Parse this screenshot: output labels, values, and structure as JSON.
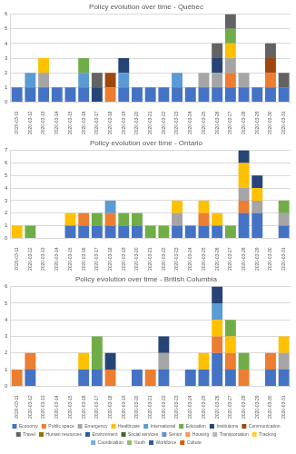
{
  "chart_data": [
    {
      "type": "bar",
      "title": "Policy evolution over time - Québec",
      "stacked": true,
      "grid": true,
      "categories": [
        "2020-03-11",
        "2020-03-12",
        "2020-03-13",
        "2020-03-14",
        "2020-03-15",
        "2020-03-16",
        "2020-03-17",
        "2020-03-18",
        "2020-03-19",
        "2020-03-20",
        "2020-03-21",
        "2020-03-22",
        "2020-03-23",
        "2020-03-24",
        "2020-03-25",
        "2020-03-26",
        "2020-03-27",
        "2020-03-28",
        "2020-03-29",
        "2020-03-30",
        "2020-03-31"
      ],
      "ylim": [
        0,
        6
      ],
      "yticks": [
        0,
        1,
        2,
        3,
        4,
        5,
        6
      ],
      "series": [
        {
          "name": "Economy",
          "color": "#4472C4",
          "values": [
            1,
            1,
            1,
            1,
            1,
            1,
            0,
            0,
            1,
            1,
            1,
            1,
            1,
            1,
            1,
            1,
            1,
            1,
            1,
            1,
            1
          ]
        },
        {
          "name": "Public space",
          "color": "#ED7D31",
          "values": [
            0,
            0,
            0,
            0,
            0,
            0,
            0,
            1,
            0,
            0,
            0,
            0,
            0,
            0,
            0,
            0,
            1,
            0,
            0,
            1,
            0
          ]
        },
        {
          "name": "Emergency",
          "color": "#A5A5A5",
          "values": [
            0,
            0,
            1,
            0,
            0,
            0,
            0,
            0,
            0,
            0,
            0,
            0,
            0,
            0,
            1,
            1,
            1,
            1,
            0,
            0,
            0
          ]
        },
        {
          "name": "Healthcare",
          "color": "#FFC000",
          "values": [
            0,
            0,
            1,
            0,
            0,
            0,
            0,
            0,
            0,
            0,
            0,
            0,
            0,
            0,
            0,
            0,
            1,
            0,
            0,
            0,
            0
          ]
        },
        {
          "name": "International",
          "color": "#5B9BD5",
          "values": [
            0,
            1,
            0,
            0,
            0,
            1,
            0,
            0,
            1,
            0,
            0,
            0,
            1,
            0,
            0,
            0,
            0,
            0,
            0,
            0,
            0
          ]
        },
        {
          "name": "Education",
          "color": "#70AD47",
          "values": [
            0,
            0,
            0,
            0,
            0,
            1,
            0,
            0,
            0,
            0,
            0,
            0,
            0,
            0,
            0,
            0,
            1,
            0,
            0,
            0,
            0
          ]
        },
        {
          "name": "Institutions",
          "color": "#264478",
          "values": [
            0,
            0,
            0,
            0,
            0,
            0,
            1,
            0,
            1,
            0,
            0,
            0,
            0,
            0,
            0,
            1,
            0,
            0,
            0,
            0,
            0
          ]
        },
        {
          "name": "Communication",
          "color": "#9E480E",
          "values": [
            0,
            0,
            0,
            0,
            0,
            0,
            0,
            1,
            0,
            0,
            0,
            0,
            0,
            0,
            0,
            0,
            0,
            0,
            0,
            1,
            0
          ]
        },
        {
          "name": "Travel",
          "color": "#636363",
          "values": [
            0,
            0,
            0,
            0,
            0,
            0,
            1,
            0,
            0,
            0,
            0,
            0,
            0,
            0,
            0,
            1,
            1,
            0,
            0,
            1,
            1
          ]
        }
      ]
    },
    {
      "type": "bar",
      "title": "Policy evolution over time - Ontario",
      "stacked": true,
      "grid": true,
      "categories": [
        "2020-03-11",
        "2020-03-12",
        "2020-03-13",
        "2020-03-14",
        "2020-03-15",
        "2020-03-16",
        "2020-03-17",
        "2020-03-18",
        "2020-03-19",
        "2020-03-20",
        "2020-03-21",
        "2020-03-22",
        "2020-03-23",
        "2020-03-24",
        "2020-03-25",
        "2020-03-26",
        "2020-03-27",
        "2020-03-28",
        "2020-03-29",
        "2020-03-30",
        "2020-03-31"
      ],
      "ylim": [
        0,
        7
      ],
      "yticks": [
        0,
        1,
        2,
        3,
        4,
        5,
        6,
        7
      ],
      "series": [
        {
          "name": "Economy",
          "color": "#4472C4",
          "values": [
            0,
            0,
            0,
            0,
            1,
            1,
            1,
            1,
            1,
            1,
            0,
            0,
            1,
            1,
            1,
            1,
            0,
            2,
            2,
            0,
            1
          ]
        },
        {
          "name": "Public space",
          "color": "#ED7D31",
          "values": [
            0,
            0,
            0,
            0,
            0,
            1,
            0,
            1,
            0,
            0,
            0,
            0,
            0,
            0,
            1,
            0,
            0,
            1,
            0,
            0,
            0
          ]
        },
        {
          "name": "Emergency",
          "color": "#A5A5A5",
          "values": [
            0,
            0,
            0,
            0,
            0,
            0,
            0,
            0,
            0,
            0,
            0,
            0,
            1,
            0,
            0,
            0,
            0,
            1,
            1,
            0,
            1
          ]
        },
        {
          "name": "Healthcare",
          "color": "#FFC000",
          "values": [
            1,
            0,
            0,
            0,
            1,
            0,
            0,
            0,
            0,
            0,
            0,
            0,
            1,
            0,
            1,
            1,
            0,
            2,
            1,
            0,
            0
          ]
        },
        {
          "name": "International",
          "color": "#5B9BD5",
          "values": [
            0,
            0,
            0,
            0,
            0,
            0,
            0,
            1,
            0,
            0,
            0,
            0,
            0,
            0,
            0,
            0,
            0,
            0,
            0,
            0,
            0
          ]
        },
        {
          "name": "Education",
          "color": "#70AD47",
          "values": [
            0,
            1,
            0,
            0,
            0,
            0,
            1,
            0,
            1,
            1,
            1,
            1,
            0,
            0,
            0,
            0,
            1,
            0,
            0,
            0,
            1
          ]
        },
        {
          "name": "Institutions",
          "color": "#264478",
          "values": [
            0,
            0,
            0,
            0,
            0,
            0,
            0,
            0,
            0,
            0,
            0,
            0,
            0,
            0,
            0,
            0,
            0,
            1,
            1,
            0,
            0
          ]
        }
      ]
    },
    {
      "type": "bar",
      "title": "Policy evolution over time - British Columbia",
      "stacked": true,
      "grid": true,
      "legend": "bottom",
      "categories": [
        "2020-03-11",
        "2020-03-12",
        "2020-03-13",
        "2020-03-14",
        "2020-03-15",
        "2020-03-16",
        "2020-03-17",
        "2020-03-18",
        "2020-03-19",
        "2020-03-20",
        "2020-03-21",
        "2020-03-22",
        "2020-03-23",
        "2020-03-24",
        "2020-03-25",
        "2020-03-26",
        "2020-03-27",
        "2020-03-28",
        "2020-03-29",
        "2020-03-30",
        "2020-03-31"
      ],
      "ylim": [
        0,
        6
      ],
      "yticks": [
        0,
        1,
        2,
        3,
        4,
        5,
        6
      ],
      "series": [
        {
          "name": "Economy",
          "color": "#4472C4",
          "values": [
            0,
            1,
            0,
            0,
            0,
            1,
            1,
            0,
            0,
            1,
            0,
            1,
            0,
            1,
            1,
            2,
            1,
            0,
            0,
            1,
            1
          ]
        },
        {
          "name": "Public space",
          "color": "#ED7D31",
          "values": [
            1,
            1,
            0,
            0,
            0,
            0,
            0,
            1,
            0,
            0,
            1,
            0,
            0,
            0,
            0,
            1,
            1,
            1,
            0,
            1,
            0
          ]
        },
        {
          "name": "Emergency",
          "color": "#A5A5A5",
          "values": [
            0,
            0,
            0,
            0,
            0,
            0,
            0,
            0,
            0,
            0,
            0,
            1,
            0,
            0,
            0,
            0,
            0,
            0,
            0,
            0,
            1
          ]
        },
        {
          "name": "Healthcare",
          "color": "#FFC000",
          "values": [
            0,
            0,
            0,
            0,
            0,
            1,
            0,
            0,
            0,
            0,
            0,
            0,
            0,
            0,
            1,
            1,
            1,
            0,
            0,
            0,
            1
          ]
        },
        {
          "name": "International",
          "color": "#5B9BD5",
          "values": [
            0,
            0,
            0,
            0,
            0,
            0,
            0,
            0,
            0,
            0,
            0,
            0,
            0,
            0,
            0,
            1,
            0,
            0,
            0,
            0,
            0
          ]
        },
        {
          "name": "Education",
          "color": "#70AD47",
          "values": [
            0,
            0,
            0,
            0,
            0,
            0,
            2,
            0,
            0,
            0,
            0,
            0,
            0,
            0,
            0,
            0,
            1,
            1,
            0,
            0,
            0
          ]
        },
        {
          "name": "Institutions",
          "color": "#264478",
          "values": [
            0,
            0,
            0,
            0,
            0,
            0,
            0,
            1,
            0,
            0,
            0,
            1,
            0,
            0,
            0,
            1,
            0,
            0,
            0,
            0,
            0
          ]
        },
        {
          "name": "Communication",
          "color": "#9E480E",
          "values": [
            0,
            0,
            0,
            0,
            0,
            0,
            0,
            0,
            0,
            0,
            0,
            0,
            0,
            0,
            0,
            0,
            0,
            0,
            0,
            0,
            0
          ]
        },
        {
          "name": "Travel",
          "color": "#636363",
          "values": [
            0,
            0,
            0,
            0,
            0,
            0,
            0,
            0,
            0,
            0,
            0,
            0,
            0,
            0,
            0,
            0,
            0,
            0,
            0,
            0,
            0
          ]
        },
        {
          "name": "Human resources",
          "color": "#997300",
          "values": [
            0,
            0,
            0,
            0,
            0,
            0,
            0,
            0,
            0,
            0,
            0,
            0,
            0,
            0,
            0,
            0,
            0,
            0,
            0,
            0,
            0
          ]
        },
        {
          "name": "Environment",
          "color": "#255E91",
          "values": [
            0,
            0,
            0,
            0,
            0,
            0,
            0,
            0,
            0,
            0,
            0,
            0,
            0,
            0,
            0,
            0,
            0,
            0,
            0,
            0,
            0
          ]
        },
        {
          "name": "Social services",
          "color": "#43682B",
          "values": [
            0,
            0,
            0,
            0,
            0,
            0,
            0,
            0,
            0,
            0,
            0,
            0,
            0,
            0,
            0,
            0,
            0,
            0,
            0,
            0,
            0
          ]
        },
        {
          "name": "Senior",
          "color": "#698ED0",
          "values": [
            0,
            0,
            0,
            0,
            0,
            0,
            0,
            0,
            0,
            0,
            0,
            0,
            0,
            0,
            0,
            0,
            0,
            0,
            0,
            0,
            0
          ]
        },
        {
          "name": "Housing",
          "color": "#F1975A",
          "values": [
            0,
            0,
            0,
            0,
            0,
            0,
            0,
            0,
            0,
            0,
            0,
            0,
            0,
            0,
            0,
            0,
            0,
            0,
            0,
            0,
            0
          ]
        },
        {
          "name": "Transportation",
          "color": "#B7B7B7",
          "values": [
            0,
            0,
            0,
            0,
            0,
            0,
            0,
            0,
            0,
            0,
            0,
            0,
            0,
            0,
            0,
            0,
            0,
            0,
            0,
            0,
            0
          ]
        },
        {
          "name": "Tracking",
          "color": "#FFCD33",
          "values": [
            0,
            0,
            0,
            0,
            0,
            0,
            0,
            0,
            0,
            0,
            0,
            0,
            0,
            0,
            0,
            0,
            0,
            0,
            0,
            0,
            0
          ]
        },
        {
          "name": "Coordination",
          "color": "#7CAFDD",
          "values": [
            0,
            0,
            0,
            0,
            0,
            0,
            0,
            0,
            0,
            0,
            0,
            0,
            0,
            0,
            0,
            0,
            0,
            0,
            0,
            0,
            0
          ]
        },
        {
          "name": "Youth",
          "color": "#8CC168",
          "values": [
            0,
            0,
            0,
            0,
            0,
            0,
            0,
            0,
            0,
            0,
            0,
            0,
            0,
            0,
            0,
            0,
            0,
            0,
            0,
            0,
            0
          ]
        },
        {
          "name": "Workforce",
          "color": "#335AA1",
          "values": [
            0,
            0,
            0,
            0,
            0,
            0,
            0,
            0,
            0,
            0,
            0,
            0,
            0,
            0,
            0,
            0,
            0,
            0,
            0,
            0,
            0
          ]
        },
        {
          "name": "Culture",
          "color": "#D26012",
          "values": [
            0,
            0,
            0,
            0,
            0,
            0,
            0,
            0,
            0,
            0,
            0,
            0,
            0,
            0,
            0,
            0,
            0,
            0,
            0,
            0,
            0
          ]
        }
      ]
    }
  ]
}
